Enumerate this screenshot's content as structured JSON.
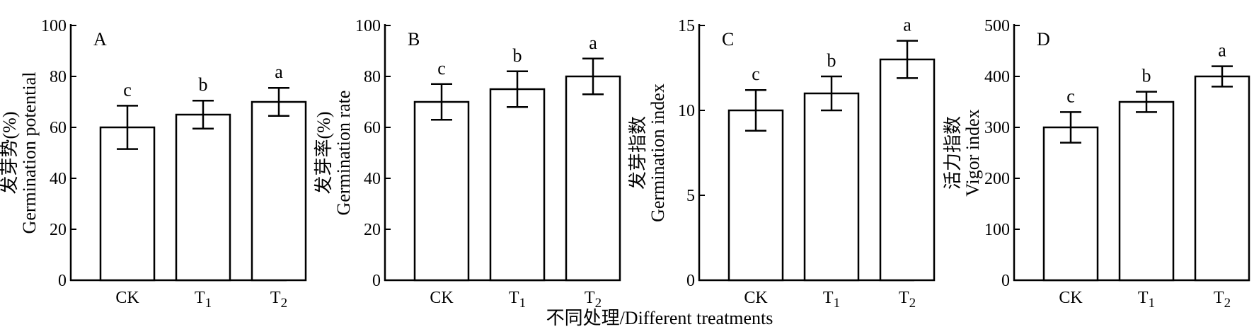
{
  "figure": {
    "shared_xlabel": "不同处理/Different treatments"
  },
  "chart_data": [
    {
      "type": "bar",
      "panel": "A",
      "ylabel_cn": "发芽势(%)",
      "ylabel_en": "Germination potential",
      "ylim": [
        0,
        100
      ],
      "yticks": [
        "0",
        "20",
        "40",
        "60",
        "80",
        "100"
      ],
      "categories": [
        {
          "base": "CK",
          "sub": ""
        },
        {
          "base": "T",
          "sub": "1"
        },
        {
          "base": "T",
          "sub": "2"
        }
      ],
      "values": [
        60,
        65,
        70
      ],
      "errors": [
        8.5,
        5.5,
        5.5
      ],
      "significance": [
        "c",
        "b",
        "a"
      ]
    },
    {
      "type": "bar",
      "panel": "B",
      "ylabel_cn": "发芽率(%)",
      "ylabel_en": "Germination rate",
      "ylim": [
        0,
        100
      ],
      "yticks": [
        "0",
        "20",
        "40",
        "60",
        "80",
        "100"
      ],
      "categories": [
        {
          "base": "CK",
          "sub": ""
        },
        {
          "base": "T",
          "sub": "1"
        },
        {
          "base": "T",
          "sub": "2"
        }
      ],
      "values": [
        70,
        75,
        80
      ],
      "errors": [
        7,
        7,
        7
      ],
      "significance": [
        "c",
        "b",
        "a"
      ]
    },
    {
      "type": "bar",
      "panel": "C",
      "ylabel_cn": "发芽指数",
      "ylabel_en": "Germination index",
      "ylim": [
        0,
        15
      ],
      "yticks": [
        "0",
        "5",
        "10",
        "15"
      ],
      "categories": [
        {
          "base": "CK",
          "sub": ""
        },
        {
          "base": "T",
          "sub": "1"
        },
        {
          "base": "T",
          "sub": "2"
        }
      ],
      "values": [
        10,
        11,
        13
      ],
      "errors": [
        1.2,
        1.0,
        1.1
      ],
      "significance": [
        "c",
        "b",
        "a"
      ]
    },
    {
      "type": "bar",
      "panel": "D",
      "ylabel_cn": "活力指数",
      "ylabel_en": "Vigor index",
      "ylim": [
        0,
        500
      ],
      "yticks": [
        "0",
        "100",
        "200",
        "300",
        "400",
        "500"
      ],
      "categories": [
        {
          "base": "CK",
          "sub": ""
        },
        {
          "base": "T",
          "sub": "1"
        },
        {
          "base": "T",
          "sub": "2"
        }
      ],
      "values": [
        300,
        350,
        400
      ],
      "errors": [
        30,
        20,
        20
      ],
      "significance": [
        "c",
        "b",
        "a"
      ]
    }
  ]
}
